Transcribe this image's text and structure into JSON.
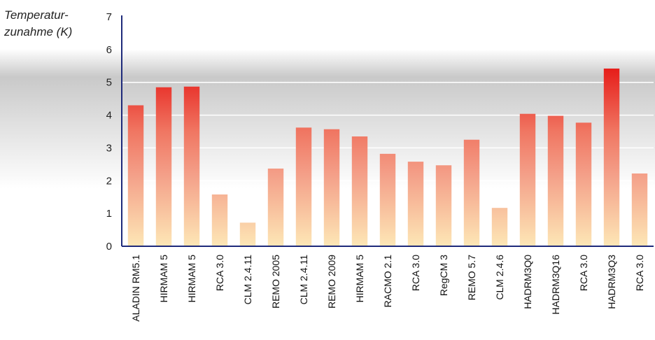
{
  "chart_data": {
    "type": "bar",
    "ylabel_lines": [
      "Temperatur-",
      "zunahme (K)"
    ],
    "ylim": [
      0,
      7
    ],
    "yticks": [
      "0",
      "1",
      "2",
      "3",
      "4",
      "5",
      "6",
      "7"
    ],
    "grid": true,
    "categories": [
      "ALADIN RM5.1",
      "HIRMAM 5",
      "HIRMAM 5",
      "RCA 3.0",
      "CLM 2.4.11",
      "REMO 2005",
      "CLM 2.4.11",
      "REMO 2009",
      "HIRMAM 5",
      "RACMO 2.1",
      "RCA 3.0",
      "RegCM 3",
      "REMO 5.7",
      "CLM 2.4.6",
      "HADRM3Q0",
      "HADRM3Q16",
      "RCA 3.0",
      "HADRM3Q3",
      "RCA 3.0"
    ],
    "values": [
      4.3,
      4.85,
      4.87,
      1.58,
      0.72,
      2.37,
      3.62,
      3.57,
      3.35,
      2.82,
      2.58,
      2.47,
      3.25,
      1.17,
      4.04,
      3.98,
      3.77,
      5.42,
      2.22
    ],
    "colors": {
      "bar_top": "#e8231c",
      "bar_mid": "#f08a7a",
      "bar_bottom": "#fde6b4",
      "axis": "#1e2a7a",
      "band": "#cfcfcf"
    }
  }
}
